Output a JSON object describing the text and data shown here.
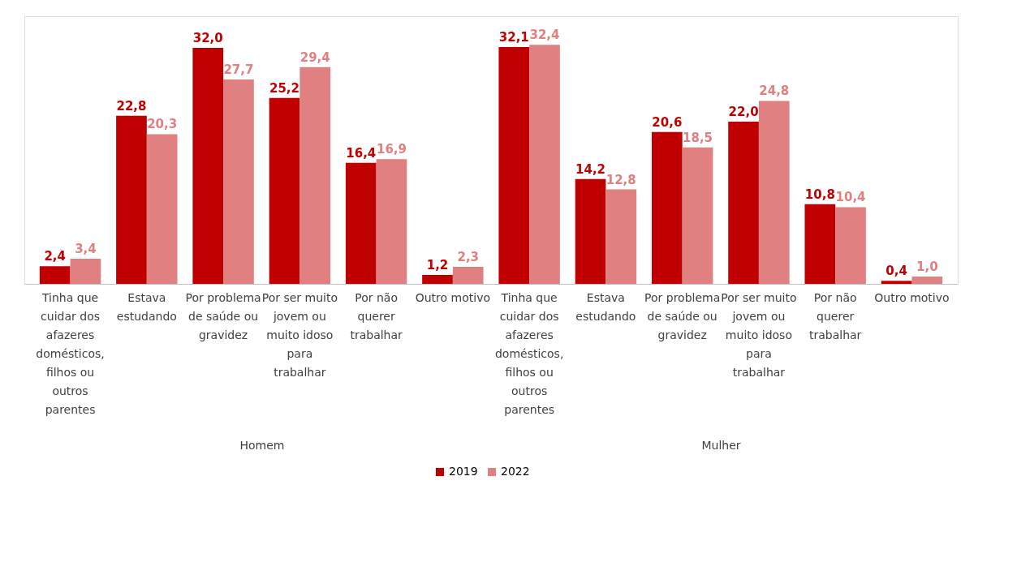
{
  "chart_data": {
    "type": "bar",
    "categories": [
      "Tinha que cuidar dos afazeres domésticos, filhos ou outros parentes",
      "Estava estudando",
      "Por problema de saúde ou gravidez",
      "Por ser muito jovem ou muito idoso para trabalhar",
      "Por não querer trabalhar",
      "Outro motivo",
      "Tinha que cuidar dos afazeres domésticos, filhos ou outros parentes",
      "Estava estudando",
      "Por problema de saúde ou gravidez",
      "Por ser muito jovem ou muito idoso para trabalhar",
      "Por não querer trabalhar",
      "Outro motivo"
    ],
    "series": [
      {
        "name": "2019",
        "color": "#c00000",
        "values": [
          2.4,
          22.8,
          32.0,
          25.2,
          16.4,
          1.2,
          32.1,
          14.2,
          20.6,
          22.0,
          10.8,
          0.4
        ],
        "value_labels": [
          "2,4",
          "22,8",
          "32,0",
          "25,2",
          "16,4",
          "1,2",
          "32,1",
          "14,2",
          "20,6",
          "22,0",
          "10,8",
          "0,4"
        ]
      },
      {
        "name": "2022",
        "color": "#e08080",
        "values": [
          3.4,
          20.3,
          27.7,
          29.4,
          16.9,
          2.3,
          32.4,
          12.8,
          18.5,
          24.8,
          10.4,
          1.0
        ],
        "value_labels": [
          "3,4",
          "20,3",
          "27,7",
          "29,4",
          "16,9",
          "2,3",
          "32,4",
          "12,8",
          "18,5",
          "24,8",
          "10,4",
          "1,0"
        ]
      }
    ],
    "annotations": [
      "Homem",
      "Mulher"
    ],
    "legend": "bottom",
    "grid": false
  }
}
